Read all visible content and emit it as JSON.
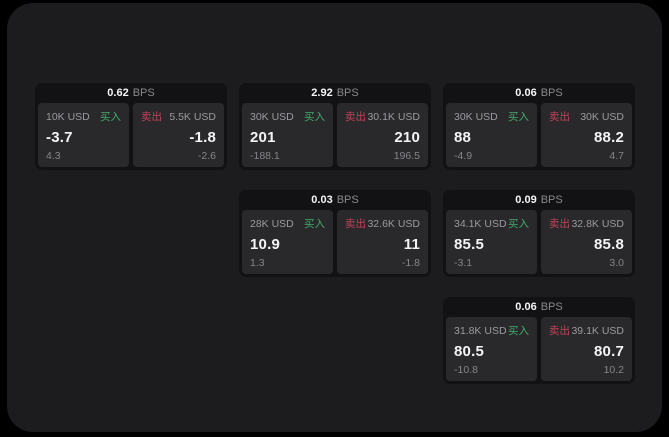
{
  "page": {
    "bps_unit": "BPS",
    "buy_label": "买入",
    "sell_label": "卖出",
    "colors": {
      "background": "#000000",
      "surface": "#1c1c1e",
      "card": "#121214",
      "pane": "#29292b",
      "buy_accent": "#42aa6c",
      "sell_accent": "#c24158",
      "primary_text": "#f4f4f6",
      "muted_text": "#9a9aa0"
    }
  },
  "cards": [
    {
      "row": 0,
      "col": 0,
      "bps": "0.62",
      "buy": {
        "size": "10K USD",
        "price": "-3.7",
        "change": "4.3"
      },
      "sell": {
        "size": "5.5K USD",
        "price": "-1.8",
        "change": "-2.6"
      }
    },
    {
      "row": 0,
      "col": 1,
      "bps": "2.92",
      "buy": {
        "size": "30K USD",
        "price": "201",
        "change": "-188.1"
      },
      "sell": {
        "size": "30.1K USD",
        "price": "210",
        "change": "196.5"
      }
    },
    {
      "row": 0,
      "col": 2,
      "bps": "0.06",
      "buy": {
        "size": "30K USD",
        "price": "88",
        "change": "-4.9"
      },
      "sell": {
        "size": "30K USD",
        "price": "88.2",
        "change": "4.7"
      }
    },
    {
      "row": 1,
      "col": 1,
      "bps": "0.03",
      "buy": {
        "size": "28K USD",
        "price": "10.9",
        "change": "1.3"
      },
      "sell": {
        "size": "32.6K USD",
        "price": "11",
        "change": "-1.8"
      }
    },
    {
      "row": 1,
      "col": 2,
      "bps": "0.09",
      "buy": {
        "size": "34.1K USD",
        "price": "85.5",
        "change": "-3.1"
      },
      "sell": {
        "size": "32.8K USD",
        "price": "85.8",
        "change": "3.0"
      }
    },
    {
      "row": 2,
      "col": 2,
      "bps": "0.06",
      "buy": {
        "size": "31.8K USD",
        "price": "80.5",
        "change": "-10.8"
      },
      "sell": {
        "size": "39.1K USD",
        "price": "80.7",
        "change": "10.2"
      }
    }
  ]
}
